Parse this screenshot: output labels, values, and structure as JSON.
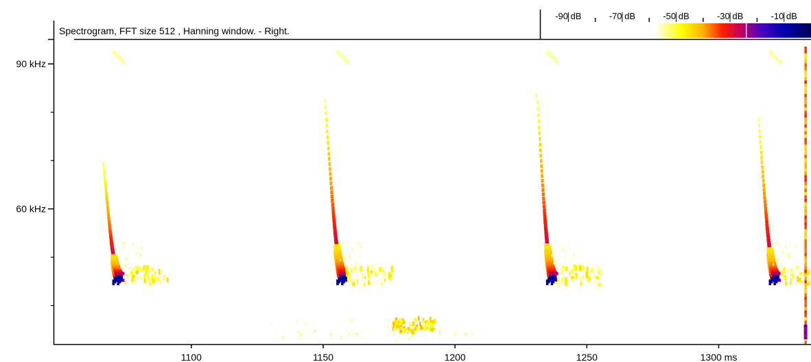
{
  "chart_data": {
    "type": "heatmap",
    "title": "Spectrogram, FFT size 512 , Hanning window. - Right.",
    "x_unit": "ms",
    "y_unit": "kHz",
    "xlim": [
      1048,
      1335
    ],
    "ylim": [
      32,
      95
    ],
    "x_ticks": [
      {
        "value": 1100,
        "label": "1100"
      },
      {
        "value": 1150,
        "label": "1150"
      },
      {
        "value": 1200,
        "label": "1200"
      },
      {
        "value": 1250,
        "label": "1250"
      },
      {
        "value": 1300,
        "label": "1300 ms"
      }
    ],
    "y_ticks": [
      {
        "value": 90,
        "label": "90 kHz"
      },
      {
        "value": 60,
        "label": "60 kHz"
      }
    ],
    "y_minor_ticks": [
      80,
      70,
      50,
      40
    ],
    "colorbar": {
      "ticks": [
        {
          "value": -90,
          "label": "-90 dB"
        },
        {
          "value": -70,
          "label": "-70 dB"
        },
        {
          "value": -50,
          "label": "-50 dB"
        },
        {
          "value": -30,
          "label": "-30 dB"
        },
        {
          "value": -10,
          "label": "-10 dB"
        }
      ],
      "range": [
        -100,
        0
      ],
      "stops": [
        {
          "db": -58,
          "color": "#ffffff"
        },
        {
          "db": -48,
          "color": "#ffff00"
        },
        {
          "db": -40,
          "color": "#ffb000"
        },
        {
          "db": -33,
          "color": "#ff2000"
        },
        {
          "db": -26,
          "color": "#c00060"
        },
        {
          "db": -19,
          "color": "#5000c0"
        },
        {
          "db": -10,
          "color": "#0000b0"
        },
        {
          "db": 0,
          "color": "#000050"
        }
      ],
      "marker_db": -24
    },
    "calls": [
      {
        "onset_ms": 1066.5,
        "start_khz": 69,
        "tail_end_ms": 1073,
        "tail_khz": 45.5,
        "peak_db": -5
      },
      {
        "onset_ms": 1150.5,
        "start_khz": 82,
        "tail_end_ms": 1158,
        "tail_khz": 45.5,
        "peak_db": -5
      },
      {
        "onset_ms": 1231,
        "start_khz": 83,
        "tail_end_ms": 1237.5,
        "tail_khz": 45.5,
        "peak_db": -5
      },
      {
        "onset_ms": 1315,
        "start_khz": 78,
        "tail_end_ms": 1322,
        "tail_khz": 45.5,
        "peak_db": -5
      }
    ],
    "artifact_ms": 1332.5,
    "noise_patch": {
      "ms_start": 1176,
      "ms_end": 1192,
      "khz_start": 34,
      "khz_end": 37
    }
  }
}
